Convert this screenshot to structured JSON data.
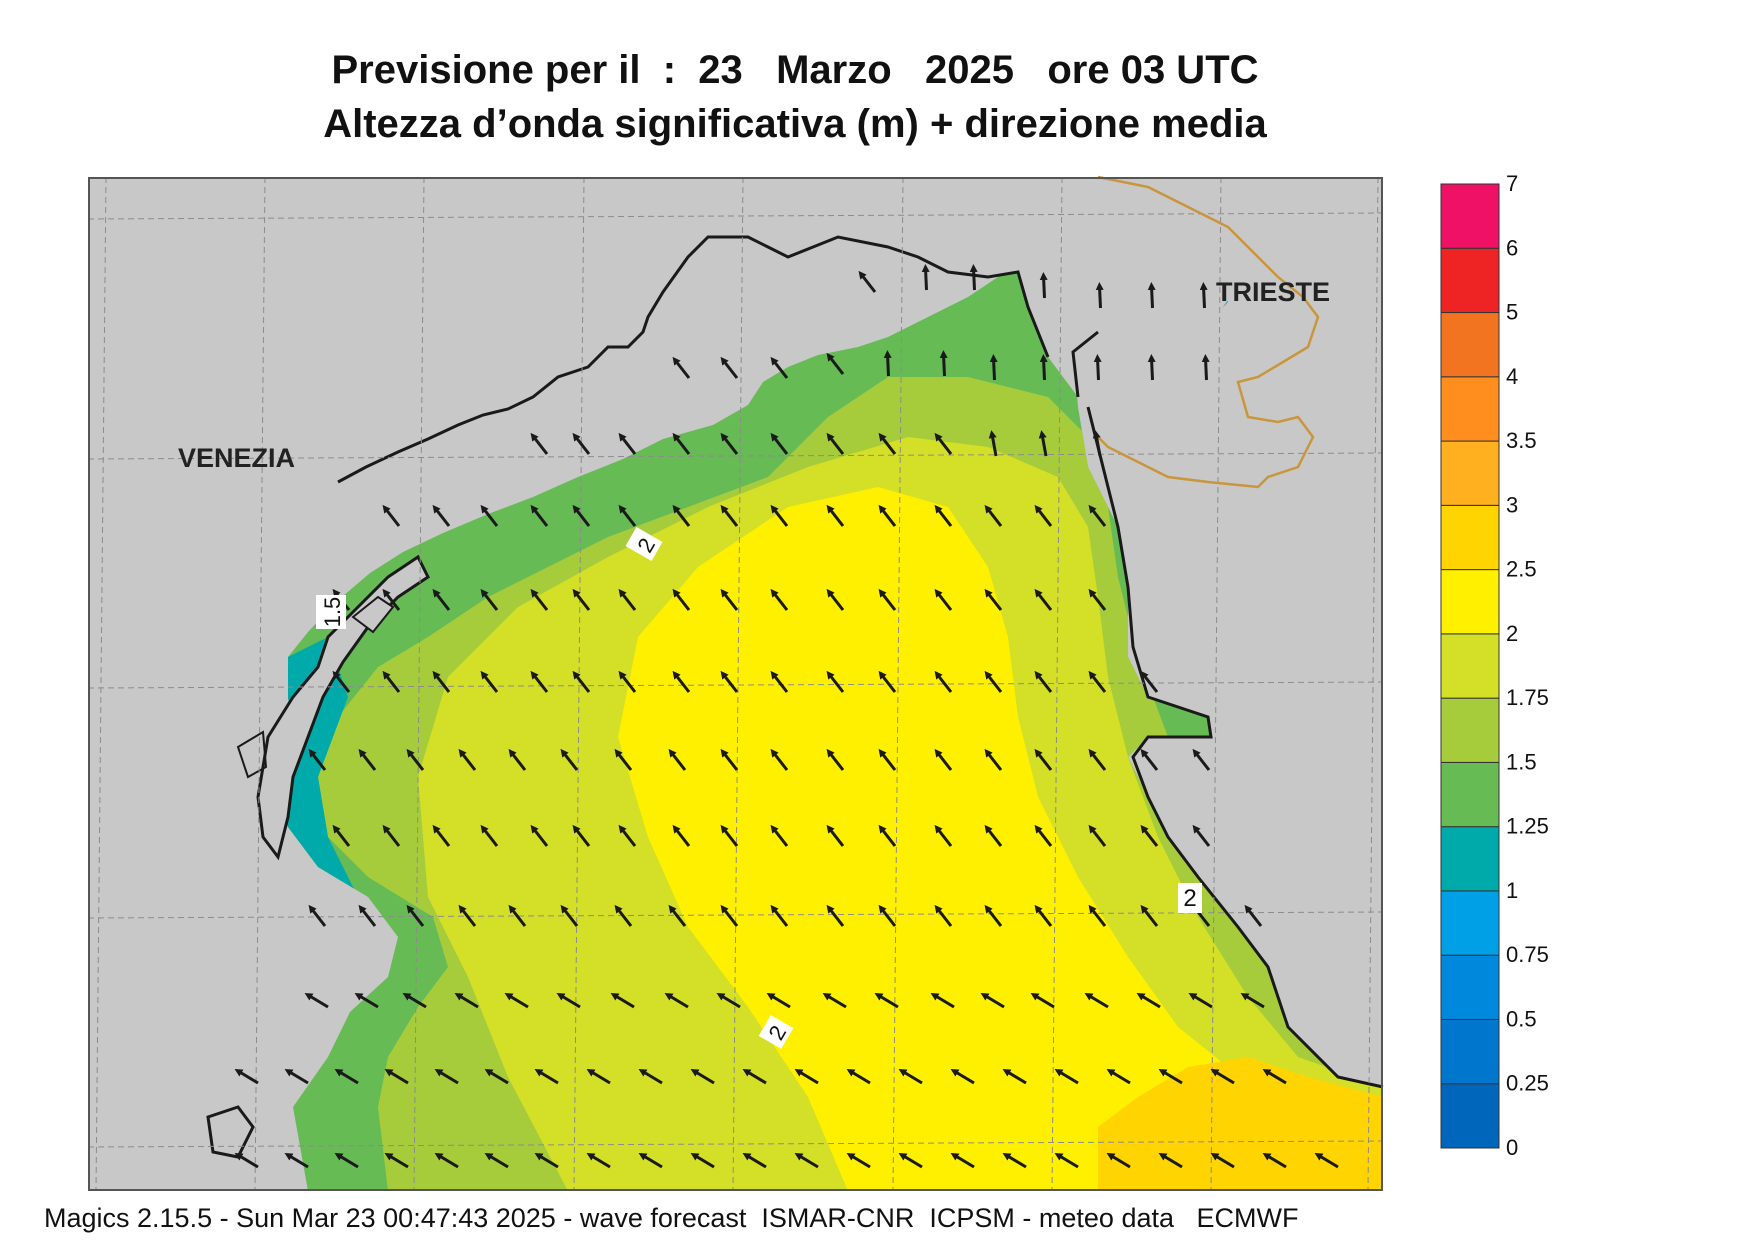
{
  "title_line1": "Previsione per il  :  23   Marzo   2025   ore 03 UTC",
  "title_line2": "Altezza d’onda significativa (m) + direzione media",
  "footer": "Magics 2.15.5 - Sun Mar 23 00:47:43 2025 - wave forecast  ISMAR-CNR  ICPSM - meteo data   ECMWF",
  "labels": {
    "city_west": "VENEZIA",
    "city_east": "TRIESTE"
  },
  "contour_labels": [
    "2",
    "1.5",
    "2",
    "2"
  ],
  "colors": {
    "land": "#c8c8c8",
    "coast": "#1a1a1a",
    "border": "#c8963c",
    "grid": "#8c8c8c",
    "arrow": "#1a1a1a"
  },
  "legend": {
    "tick_labels": [
      "0",
      "0.25",
      "0.5",
      "0.75",
      "1",
      "1.25",
      "1.5",
      "1.75",
      "2",
      "2.5",
      "3",
      "3.5",
      "4",
      "5",
      "6",
      "7"
    ],
    "colors": [
      "#0066bb",
      "#0077cc",
      "#0088dd",
      "#00a0e6",
      "#00aaaa",
      "#66bb55",
      "#a6cc3c",
      "#d4df27",
      "#fff000",
      "#ffd400",
      "#ffb01e",
      "#ff8e1e",
      "#f27420",
      "#ee2424",
      "#ee1166"
    ]
  }
}
